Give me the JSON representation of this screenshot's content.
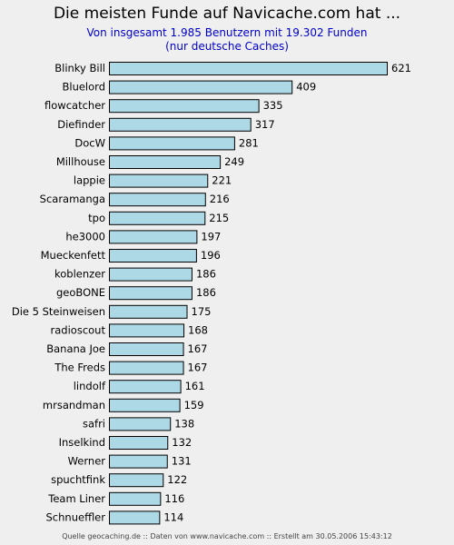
{
  "chart_data": {
    "type": "bar",
    "orientation": "horizontal",
    "title": "Die meisten Funde auf Navicache.com hat ...",
    "subtitle_line1": "Von insgesamt 1.985 Benutzern mit 19.302 Funden",
    "subtitle_line2": "(nur deutsche Caches)",
    "categories": [
      "Blinky Bill",
      "Bluelord",
      "flowcatcher",
      "Diefinder",
      "DocW",
      "Millhouse",
      "lappie",
      "Scaramanga",
      "tpo",
      "he3000",
      "Mueckenfett",
      "koblenzer",
      "geoBONE",
      "Die 5 Steinweisen",
      "radioscout",
      "Banana Joe",
      "The Freds",
      "lindolf",
      "mrsandman",
      "safri",
      "Inselkind",
      "Werner",
      "spuchtfink",
      "Team Liner",
      "Schnueffler"
    ],
    "values": [
      621,
      409,
      335,
      317,
      281,
      249,
      221,
      216,
      215,
      197,
      196,
      186,
      186,
      175,
      168,
      167,
      167,
      161,
      159,
      138,
      132,
      131,
      122,
      116,
      114
    ],
    "value_labels": [
      "621",
      "409",
      "335",
      "317",
      "281",
      "249",
      "221",
      "216",
      "215",
      "197",
      "196",
      "186",
      "186",
      "175",
      "168",
      "167",
      "167",
      "161",
      "159",
      "138",
      "132",
      "131",
      "122",
      "116",
      "114"
    ],
    "bar_color": "#add8e6",
    "bar_border_color": "#000000",
    "background_color": "#efefef",
    "grid": false,
    "legend": "none",
    "xlim": [
      0,
      621
    ],
    "footer": "Quelle geocaching.de :: Daten von www.navicache.com :: Erstellt am 30.05.2006 15:43:12"
  }
}
